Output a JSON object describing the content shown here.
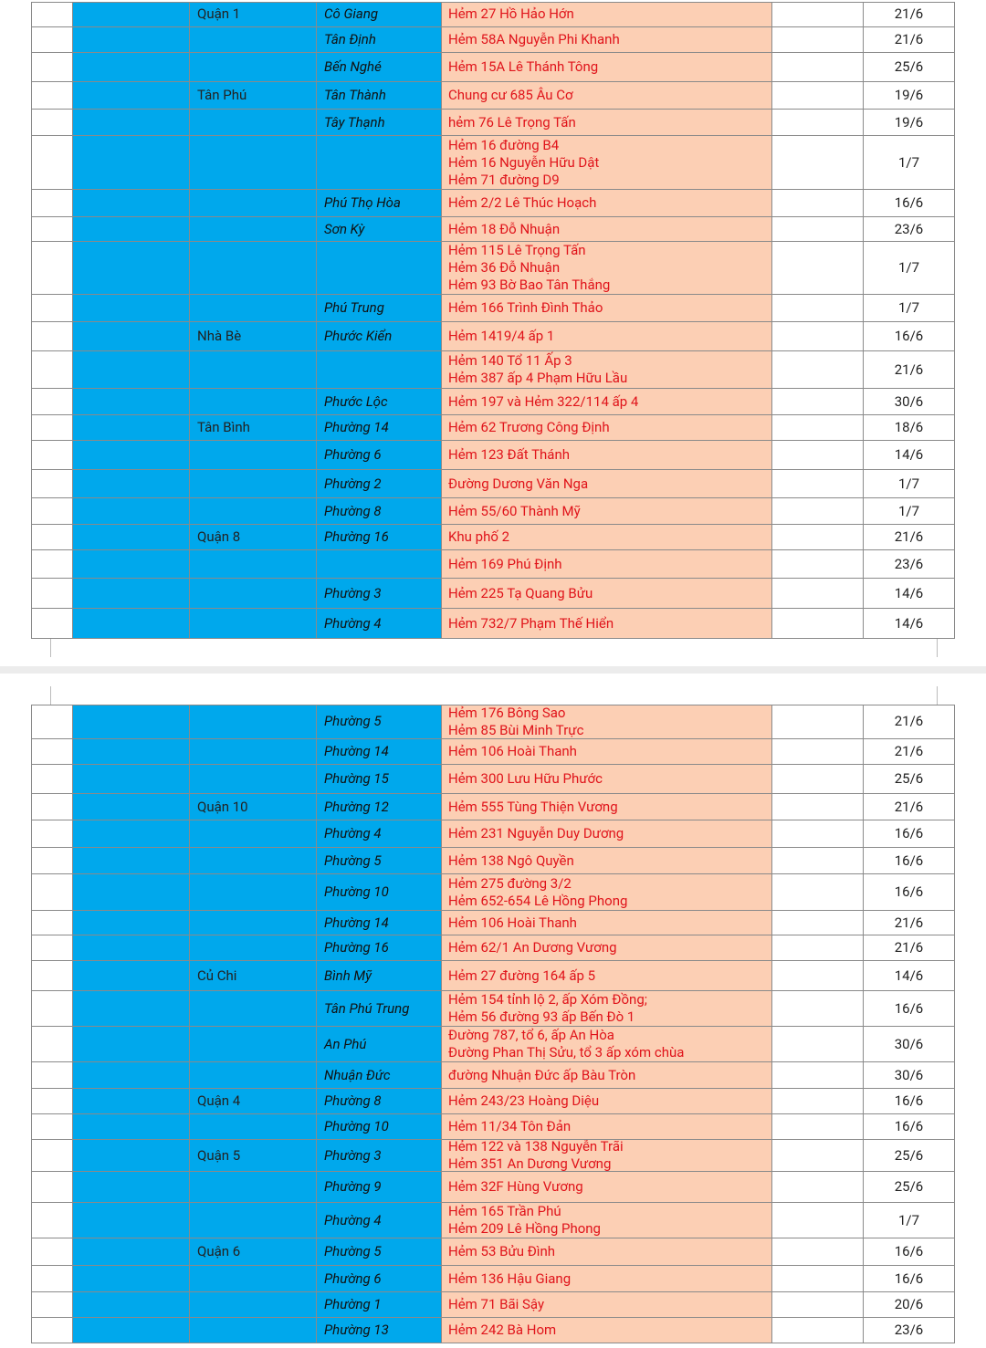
{
  "tables": [
    {
      "rows": [
        {
          "district": "Quận 1",
          "ward": "Cô Giang",
          "address": [
            "Hẻm 27 Hồ Hảo Hớn"
          ],
          "date": "21/6"
        },
        {
          "ward": "Tân Định",
          "address": [
            "Hẻm 58A Nguyễn Phi Khanh"
          ],
          "date": "21/6"
        },
        {
          "ward": "Bến Nghé",
          "address": [
            "Hẻm 15A Lê Thánh Tông"
          ],
          "date": "25/6"
        },
        {
          "district": "Tân Phú",
          "ward": "Tân Thành",
          "address": [
            "Chung cư 685 Âu Cơ"
          ],
          "date": "19/6"
        },
        {
          "ward": "Tây Thạnh",
          "address": [
            "hẻm 76 Lê Trọng Tấn"
          ],
          "date": "19/6"
        },
        {
          "address": [
            "Hẻm 16 đường B4",
            "Hẻm 16 Nguyễn Hữu Dật",
            "Hẻm 71 đường D9"
          ],
          "date": "1/7"
        },
        {
          "ward": "Phú Thọ Hòa",
          "address": [
            "Hẻm 2/2 Lê Thúc Hoạch"
          ],
          "date": "16/6"
        },
        {
          "ward": "Sơn Kỳ",
          "address": [
            "Hẻm 18 Đỗ Nhuận"
          ],
          "date": "23/6"
        },
        {
          "address": [
            "Hẻm 115 Lê Trọng Tấn",
            "Hẻm 36 Đỗ Nhuận",
            "Hẻm 93 Bờ Bao Tân Thắng"
          ],
          "date": "1/7"
        },
        {
          "ward": "Phú Trung",
          "address": [
            "Hẻm 166 Trình Đình Thảo"
          ],
          "date": "1/7"
        },
        {
          "district": "Nhà Bè",
          "ward": "Phước Kiển",
          "address": [
            "Hẻm 1419/4 ấp 1"
          ],
          "date": "16/6"
        },
        {
          "address": [
            "Hẻm 140 Tổ 11 Ấp 3",
            "Hẻm 387 ấp 4 Phạm Hữu Lầu"
          ],
          "date": "21/6"
        },
        {
          "ward": "Phước Lộc",
          "address": [
            "Hẻm 197 và Hẻm 322/114 ấp 4"
          ],
          "date": "30/6"
        },
        {
          "district": "Tân Bình",
          "ward": "Phường 14",
          "address": [
            "Hẻm 62 Trương Công Định"
          ],
          "date": "18/6"
        },
        {
          "ward": "Phường 6",
          "address": [
            "Hẻm 123 Đất Thánh"
          ],
          "date": "14/6"
        },
        {
          "ward": "Phường 2",
          "address": [
            "Đường Dương Văn Nga"
          ],
          "date": "1/7"
        },
        {
          "ward": "Phường 8",
          "address": [
            "Hẻm 55/60 Thành Mỹ"
          ],
          "date": "1/7"
        },
        {
          "district": "Quận 8",
          "ward": "Phường 16",
          "address": [
            "Khu phố 2"
          ],
          "date": "21/6"
        },
        {
          "address": [
            "Hẻm 169 Phú Định"
          ],
          "date": "23/6"
        },
        {
          "ward": "Phường 3",
          "address": [
            "Hẻm 225 Tạ Quang Bửu"
          ],
          "date": "14/6"
        },
        {
          "ward": "Phường 4",
          "address": [
            "Hẻm 732/7 Phạm Thế Hiển"
          ],
          "date": "14/6"
        }
      ]
    },
    {
      "rows": [
        {
          "ward": "Phường 5",
          "address": [
            "Hẻm 176 Bông Sao",
            "Hẻm 85 Bùi Minh Trực"
          ],
          "date": "21/6"
        },
        {
          "ward": "Phường 14",
          "address": [
            "Hẻm 106 Hoài Thanh"
          ],
          "date": "21/6"
        },
        {
          "ward": "Phường 15",
          "address": [
            "Hẻm 300 Lưu Hữu Phước"
          ],
          "date": "25/6"
        },
        {
          "district": "Quận 10",
          "ward": "Phường 12",
          "address": [
            "Hẻm 555 Tùng Thiện Vương"
          ],
          "date": "21/6"
        },
        {
          "ward": "Phường 4",
          "address": [
            "Hẻm 231 Nguyễn Duy Dương"
          ],
          "date": "16/6"
        },
        {
          "ward": "Phường 5",
          "address": [
            "Hẻm 138 Ngô Quyền"
          ],
          "date": "16/6"
        },
        {
          "ward": "Phường 10",
          "address": [
            "Hẻm 275 đường 3/2",
            "Hẻm 652-654 Lê Hồng Phong"
          ],
          "date": "16/6"
        },
        {
          "ward": "Phường 14",
          "address": [
            "Hẻm 106 Hoài Thanh"
          ],
          "date": "21/6"
        },
        {
          "ward": "Phường 16",
          "address": [
            "Hẻm 62/1 An Dương Vương"
          ],
          "date": "21/6"
        },
        {
          "district": "Củ Chi",
          "ward": "Bình Mỹ",
          "address": [
            "Hẻm 27 đường 164 ấp 5"
          ],
          "date": "14/6"
        },
        {
          "ward": "Tân Phú Trung",
          "address": [
            "Hẻm 154 tỉnh lộ 2, ấp Xóm Đồng;",
            "Hẻm 56 đường 93 ấp Bến Đò 1"
          ],
          "date": "16/6"
        },
        {
          "ward": "An Phú",
          "address": [
            "Đường 787, tổ 6, ấp An Hòa",
            "Đường Phan Thị Sửu, tổ 3 ấp xóm chùa"
          ],
          "date": "30/6"
        },
        {
          "ward": "Nhuận Đức",
          "address": [
            "đường Nhuận Đức ấp Bàu Tròn"
          ],
          "date": "30/6"
        },
        {
          "district": "Quận 4",
          "ward": "Phường 8",
          "address": [
            "Hẻm 243/23 Hoàng Diệu"
          ],
          "date": "16/6"
        },
        {
          "ward": "Phường 10",
          "address": [
            "Hẻm 11/34 Tôn Đản"
          ],
          "date": "16/6"
        },
        {
          "district": "Quận 5",
          "ward": "Phường 3",
          "address": [
            "Hẻm 122 và 138 Nguyễn Trãi",
            "Hẻm 351 An Dương Vương"
          ],
          "date": "25/6"
        },
        {
          "ward": "Phường 9",
          "address": [
            "Hẻm 32F Hùng Vương"
          ],
          "date": "25/6"
        },
        {
          "ward": "Phường 4",
          "address": [
            "Hẻm 165 Trần Phú",
            "Hẻm 209 Lê Hồng Phong"
          ],
          "date": "1/7"
        },
        {
          "district": "Quận 6",
          "ward": "Phường 5",
          "address": [
            "Hẻm 53 Bửu Đình"
          ],
          "date": "16/6"
        },
        {
          "ward": "Phường 6",
          "address": [
            "Hẻm 136 Hậu Giang"
          ],
          "date": "16/6"
        },
        {
          "ward": "Phường 1",
          "address": [
            "Hẻm 71 Bãi Sậy"
          ],
          "date": "20/6"
        },
        {
          "ward": "Phường 13",
          "address": [
            "Hẻm 242 Bà Hom"
          ],
          "date": "23/6"
        }
      ]
    }
  ]
}
